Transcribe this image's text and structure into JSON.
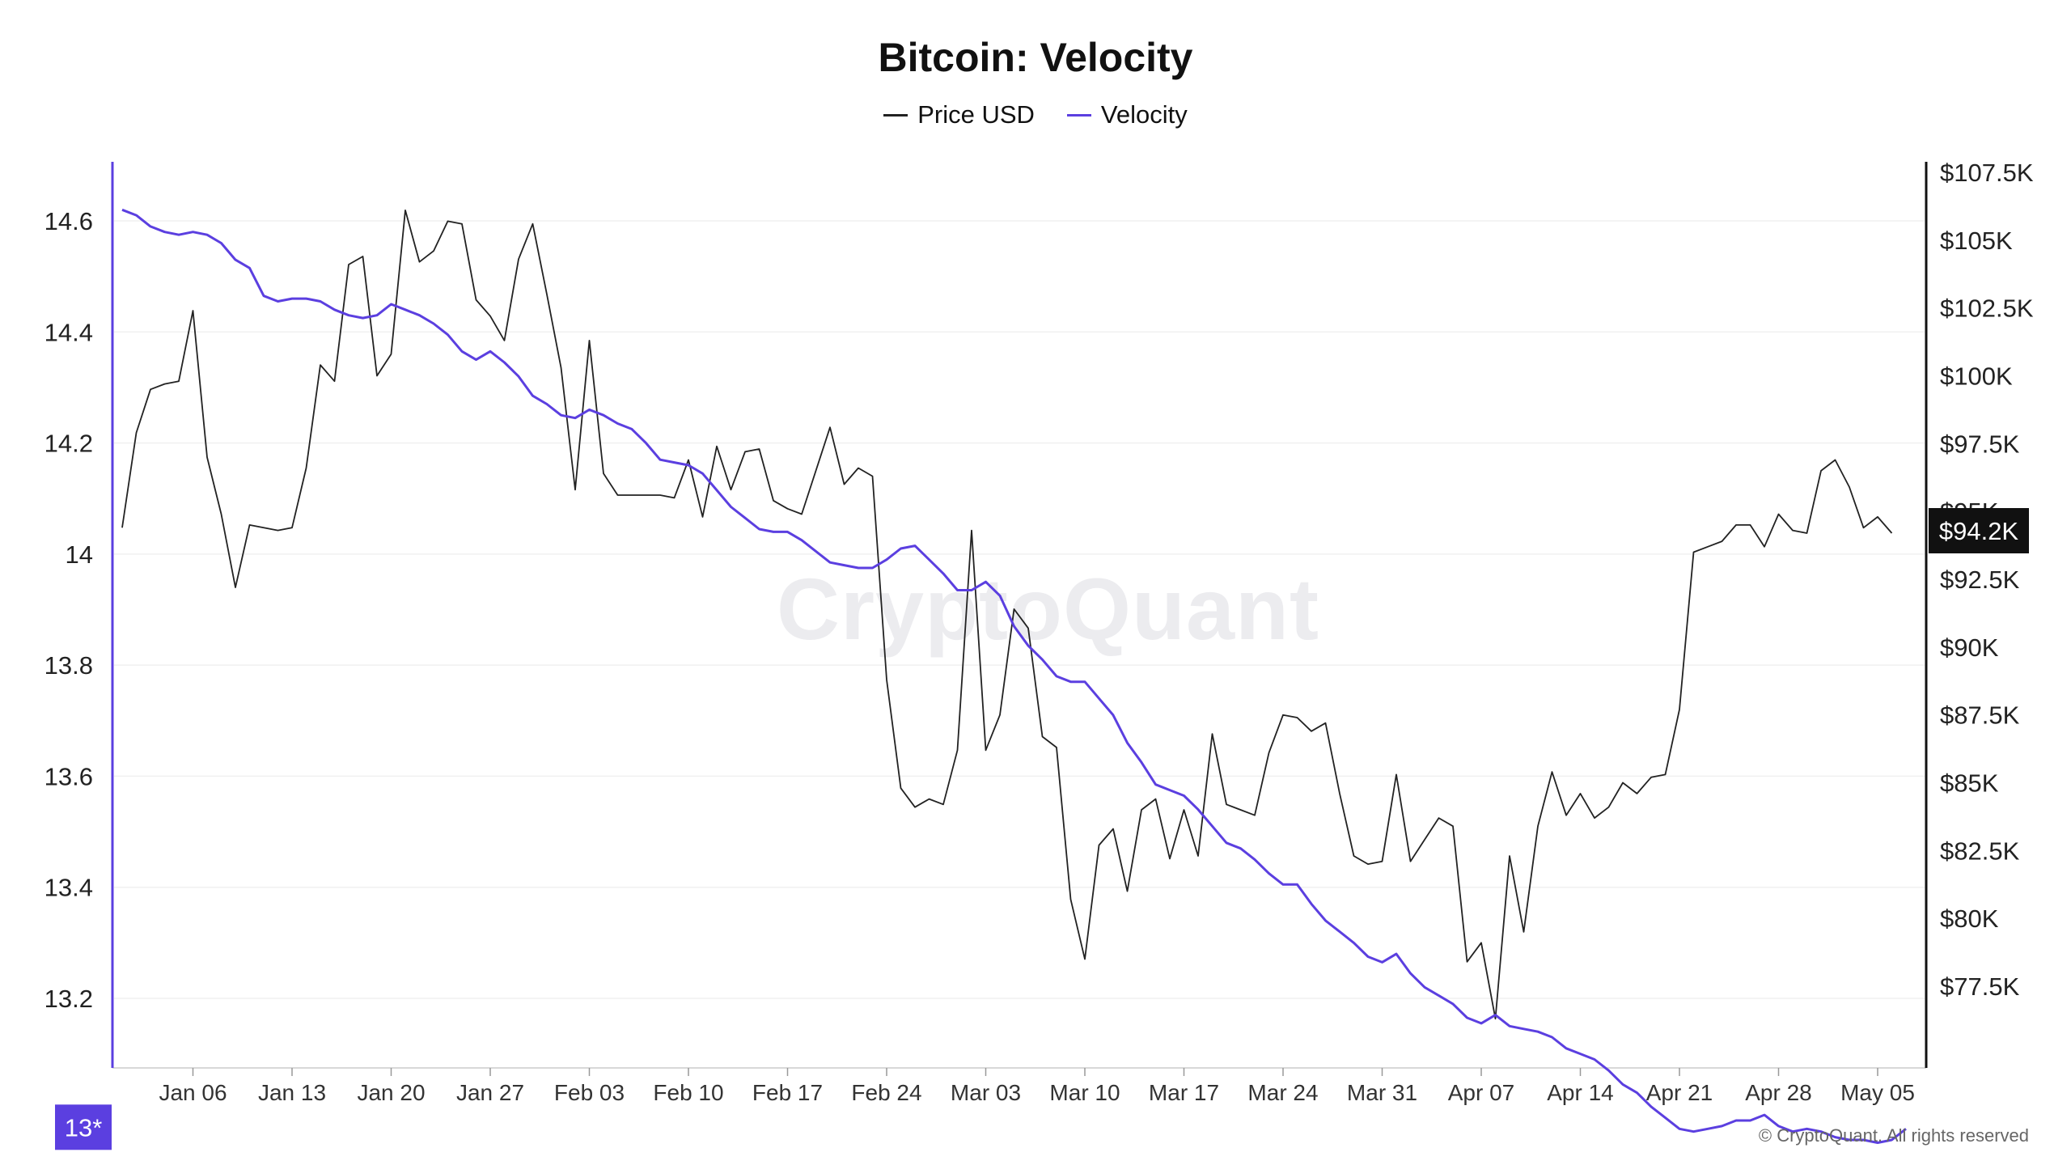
{
  "watermark": "CryptoQuant",
  "copyright": "© CryptoQuant. All rights reserved",
  "legend": [
    {
      "label": "Price USD",
      "color": "#222222"
    },
    {
      "label": "Velocity",
      "color": "#5b3fe0"
    }
  ],
  "chart_data": {
    "type": "line",
    "title": "Bitcoin: Velocity",
    "x_ticks": [
      "Jan 06",
      "Jan 13",
      "Jan 20",
      "Jan 27",
      "Feb 03",
      "Feb 10",
      "Feb 17",
      "Feb 24",
      "Mar 03",
      "Mar 10",
      "Mar 17",
      "Mar 24",
      "Mar 31",
      "Apr 07",
      "Apr 14",
      "Apr 21",
      "Apr 28",
      "May 05"
    ],
    "x_range": [
      "Jan 01",
      "May 06"
    ],
    "left_axis": {
      "series": "Velocity",
      "ticks": [
        "14.6",
        "14.4",
        "14.2",
        "14",
        "13.8",
        "13.6",
        "13.4",
        "13.2"
      ],
      "range": [
        12.92,
        14.64
      ],
      "current_label": "13*",
      "color": "#5b3fe0"
    },
    "right_axis": {
      "series": "Price USD",
      "ticks": [
        "$107.5K",
        "$105K",
        "$102.5K",
        "$100K",
        "$97.5K",
        "$95K",
        "$92.5K",
        "$90K",
        "$87.5K",
        "$85K",
        "$82.5K",
        "$80K",
        "$77.5K"
      ],
      "range": [
        75000,
        108000
      ],
      "current_label": "$94.2K",
      "color": "#111111"
    },
    "grid": true,
    "legend_position": "top-center",
    "series": [
      {
        "name": "Price USD",
        "axis": "right",
        "color": "#222222",
        "start": "Jan 01",
        "values": [
          94400,
          97900,
          99500,
          99700,
          99800,
          102400,
          97000,
          94900,
          92200,
          94500,
          94400,
          94300,
          94400,
          96600,
          100400,
          99800,
          104100,
          104400,
          100000,
          100800,
          106100,
          104200,
          104600,
          105700,
          105600,
          102800,
          102200,
          101300,
          104300,
          105600,
          103000,
          100300,
          95800,
          101300,
          96400,
          95600,
          95600,
          95600,
          95600,
          95500,
          96900,
          94800,
          97400,
          95800,
          97200,
          97300,
          95400,
          95100,
          94900,
          96500,
          98100,
          96000,
          96600,
          96300,
          88800,
          84800,
          84100,
          84400,
          84200,
          86200,
          94300,
          86200,
          87500,
          91400,
          90700,
          86700,
          86300,
          80700,
          78500,
          82700,
          83300,
          81000,
          84000,
          84400,
          82200,
          84000,
          82300,
          86800,
          84200,
          84000,
          83800,
          86100,
          87500,
          87400,
          86900,
          87200,
          84600,
          82300,
          82000,
          82100,
          85300,
          82100,
          82900,
          83700,
          83400,
          78400,
          79100,
          76300,
          82300,
          79500,
          83400,
          85400,
          83800,
          84600,
          83700,
          84100,
          85000,
          84600,
          85200,
          85300,
          87700,
          93500,
          93700,
          93900,
          94500,
          94500,
          93700,
          94900,
          94300,
          94200,
          96500,
          96900,
          95900,
          94400,
          94800,
          94200
        ]
      },
      {
        "name": "Velocity",
        "axis": "left",
        "color": "#5b3fe0",
        "start": "Jan 01",
        "values": [
          14.62,
          14.61,
          14.59,
          14.58,
          14.575,
          14.58,
          14.575,
          14.56,
          14.53,
          14.515,
          14.465,
          14.455,
          14.46,
          14.46,
          14.455,
          14.44,
          14.43,
          14.425,
          14.43,
          14.45,
          14.44,
          14.43,
          14.415,
          14.395,
          14.365,
          14.35,
          14.365,
          14.345,
          14.32,
          14.285,
          14.27,
          14.25,
          14.245,
          14.26,
          14.25,
          14.235,
          14.225,
          14.2,
          14.17,
          14.165,
          14.16,
          14.145,
          14.115,
          14.085,
          14.065,
          14.045,
          14.04,
          14.04,
          14.025,
          14.005,
          13.985,
          13.98,
          13.975,
          13.975,
          13.99,
          14.01,
          14.015,
          13.99,
          13.965,
          13.935,
          13.935,
          13.95,
          13.925,
          13.87,
          13.835,
          13.81,
          13.78,
          13.77,
          13.77,
          13.74,
          13.71,
          13.66,
          13.625,
          13.585,
          13.575,
          13.565,
          13.54,
          13.51,
          13.48,
          13.47,
          13.45,
          13.425,
          13.405,
          13.405,
          13.37,
          13.34,
          13.32,
          13.3,
          13.275,
          13.265,
          13.28,
          13.245,
          13.22,
          13.205,
          13.19,
          13.165,
          13.155,
          13.17,
          13.15,
          13.145,
          13.14,
          13.13,
          13.11,
          13.1,
          13.09,
          13.07,
          13.045,
          13.03,
          13.005,
          12.985,
          12.965,
          12.96,
          12.965,
          12.97,
          12.98,
          12.98,
          12.99,
          12.97,
          12.96,
          12.965,
          12.96,
          12.95,
          12.945,
          12.945,
          12.94,
          12.945,
          12.965
        ]
      }
    ]
  }
}
